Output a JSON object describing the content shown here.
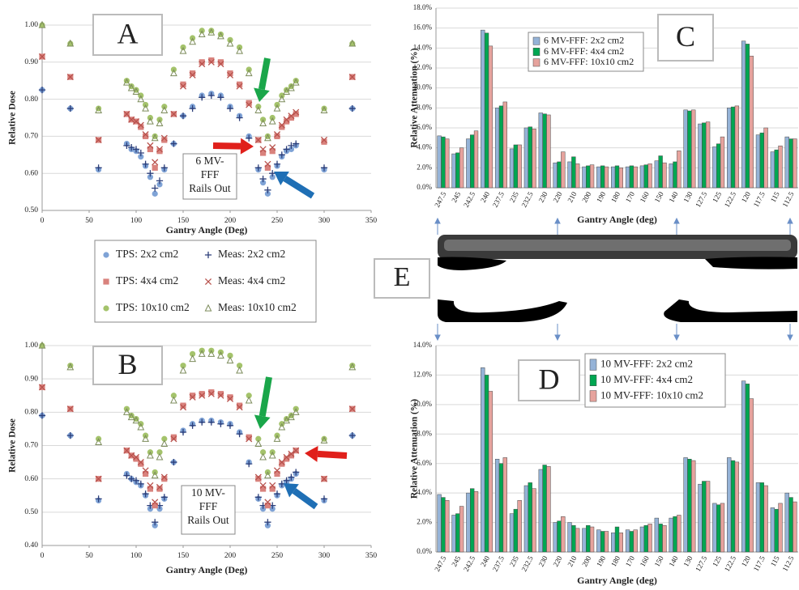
{
  "chart_data": [
    {
      "type": "scatter",
      "panel_label": "A",
      "annotation": [
        "6 MV-",
        "FFF",
        "Rails Out"
      ],
      "y_label": "Relative Dose",
      "x_label": "Gantry Angle  (Deg)",
      "xlim": [
        0,
        350
      ],
      "xticks": [
        0,
        50,
        100,
        150,
        200,
        250,
        300,
        350
      ],
      "ylim": [
        0.5,
        1.0
      ],
      "yticks": [
        {
          "value": 0.5,
          "label": "0.50"
        },
        {
          "value": 0.6,
          "label": "0.60"
        },
        {
          "value": 0.7,
          "label": "0.70"
        },
        {
          "value": 0.8,
          "label": "0.80"
        },
        {
          "value": 0.9,
          "label": "0.90"
        },
        {
          "value": 1.0,
          "label": "1.00"
        }
      ],
      "grid": true,
      "legend": true,
      "x": [
        0,
        30,
        60,
        90,
        95,
        100,
        105,
        110,
        115,
        120,
        125,
        130,
        140,
        150,
        160,
        170,
        180,
        190,
        200,
        210,
        220,
        230,
        235,
        240,
        245,
        250,
        255,
        260,
        265,
        270,
        300,
        330
      ],
      "series": [
        {
          "name": "TPS: 2x2 cm2",
          "marker": "circle",
          "color": "#7fa3d6",
          "values": [
            0.825,
            0.775,
            0.61,
            0.68,
            0.665,
            0.66,
            0.645,
            0.62,
            0.59,
            0.545,
            0.57,
            0.61,
            0.68,
            0.755,
            0.78,
            0.81,
            0.815,
            0.81,
            0.78,
            0.755,
            0.7,
            0.61,
            0.575,
            0.545,
            0.59,
            0.62,
            0.645,
            0.66,
            0.665,
            0.675,
            0.61,
            0.775
          ]
        },
        {
          "name": "Meas: 2x2 cm2",
          "marker": "plus",
          "color": "#2d3f7a",
          "values": [
            0.825,
            0.775,
            0.615,
            0.675,
            0.67,
            0.665,
            0.655,
            0.625,
            0.6,
            0.56,
            0.58,
            0.615,
            0.68,
            0.755,
            0.775,
            0.805,
            0.81,
            0.805,
            0.775,
            0.75,
            0.695,
            0.615,
            0.585,
            0.555,
            0.6,
            0.625,
            0.65,
            0.665,
            0.675,
            0.68,
            0.615,
            0.775
          ]
        },
        {
          "name": "TPS: 4x4 cm2",
          "marker": "square",
          "color": "#d9827d",
          "values": [
            0.915,
            0.86,
            0.69,
            0.76,
            0.745,
            0.74,
            0.725,
            0.7,
            0.665,
            0.615,
            0.66,
            0.69,
            0.76,
            0.84,
            0.87,
            0.9,
            0.905,
            0.9,
            0.87,
            0.84,
            0.79,
            0.69,
            0.655,
            0.615,
            0.66,
            0.7,
            0.725,
            0.74,
            0.75,
            0.76,
            0.685,
            0.86
          ]
        },
        {
          "name": "Meas: 4x4 cm2",
          "marker": "x",
          "color": "#b8524d",
          "values": [
            0.915,
            0.86,
            0.69,
            0.76,
            0.745,
            0.74,
            0.73,
            0.705,
            0.675,
            0.63,
            0.665,
            0.695,
            0.76,
            0.835,
            0.865,
            0.895,
            0.9,
            0.895,
            0.865,
            0.835,
            0.785,
            0.69,
            0.665,
            0.625,
            0.67,
            0.705,
            0.73,
            0.745,
            0.755,
            0.765,
            0.69,
            0.86
          ]
        },
        {
          "name": "TPS: 10x10 cm2",
          "marker": "circle",
          "color": "#a4c36b",
          "values": [
            1.0,
            0.95,
            0.775,
            0.85,
            0.835,
            0.825,
            0.81,
            0.785,
            0.75,
            0.7,
            0.745,
            0.78,
            0.88,
            0.94,
            0.965,
            0.985,
            0.985,
            0.975,
            0.96,
            0.94,
            0.88,
            0.78,
            0.745,
            0.7,
            0.75,
            0.785,
            0.81,
            0.825,
            0.835,
            0.85,
            0.775,
            0.95
          ]
        },
        {
          "name": "Meas: 10x10 cm2",
          "marker": "triangle",
          "color": "#7d8c5c",
          "values": [
            1.0,
            0.95,
            0.77,
            0.845,
            0.83,
            0.82,
            0.8,
            0.775,
            0.74,
            0.695,
            0.735,
            0.77,
            0.87,
            0.93,
            0.955,
            0.975,
            0.98,
            0.97,
            0.95,
            0.93,
            0.87,
            0.77,
            0.735,
            0.695,
            0.74,
            0.775,
            0.8,
            0.82,
            0.83,
            0.845,
            0.77,
            0.95
          ]
        }
      ]
    },
    {
      "type": "scatter",
      "panel_label": "B",
      "annotation": [
        "10 MV-",
        "FFF",
        "Rails Out"
      ],
      "y_label": "Relative Dose",
      "x_label": "Gantry Angle  (Deg)",
      "xlim": [
        0,
        350
      ],
      "xticks": [
        0,
        50,
        100,
        150,
        200,
        250,
        300,
        350
      ],
      "ylim": [
        0.4,
        1.0
      ],
      "yticks": [
        {
          "value": 0.4,
          "label": "0.40"
        },
        {
          "value": 0.5,
          "label": "0.50"
        },
        {
          "value": 0.6,
          "label": "0.60"
        },
        {
          "value": 0.7,
          "label": "0.70"
        },
        {
          "value": 0.8,
          "label": "0.80"
        },
        {
          "value": 0.9,
          "label": "0.90"
        },
        {
          "value": 1.0,
          "label": "1.00"
        }
      ],
      "grid": true,
      "x": [
        0,
        30,
        60,
        90,
        95,
        100,
        105,
        110,
        115,
        120,
        125,
        130,
        140,
        150,
        160,
        170,
        180,
        190,
        200,
        210,
        220,
        230,
        235,
        240,
        245,
        250,
        255,
        260,
        265,
        270,
        300,
        330
      ],
      "series": [
        {
          "marker": "circle",
          "color": "#7fa3d6",
          "values": [
            0.79,
            0.73,
            0.535,
            0.615,
            0.6,
            0.59,
            0.58,
            0.55,
            0.51,
            0.46,
            0.51,
            0.54,
            0.65,
            0.745,
            0.765,
            0.775,
            0.775,
            0.77,
            0.765,
            0.74,
            0.65,
            0.54,
            0.51,
            0.46,
            0.51,
            0.55,
            0.58,
            0.59,
            0.6,
            0.615,
            0.535,
            0.73
          ]
        },
        {
          "marker": "plus",
          "color": "#2d3f7a",
          "values": [
            0.79,
            0.73,
            0.54,
            0.61,
            0.6,
            0.595,
            0.585,
            0.555,
            0.52,
            0.47,
            0.52,
            0.545,
            0.65,
            0.74,
            0.76,
            0.77,
            0.77,
            0.765,
            0.76,
            0.735,
            0.645,
            0.545,
            0.52,
            0.47,
            0.52,
            0.555,
            0.585,
            0.595,
            0.605,
            0.62,
            0.54,
            0.73
          ]
        },
        {
          "marker": "square",
          "color": "#d9827d",
          "values": [
            0.875,
            0.81,
            0.6,
            0.685,
            0.67,
            0.66,
            0.645,
            0.615,
            0.57,
            0.52,
            0.57,
            0.6,
            0.725,
            0.82,
            0.85,
            0.855,
            0.86,
            0.855,
            0.845,
            0.82,
            0.725,
            0.6,
            0.57,
            0.52,
            0.57,
            0.615,
            0.645,
            0.66,
            0.67,
            0.685,
            0.6,
            0.81
          ]
        },
        {
          "marker": "x",
          "color": "#b8524d",
          "values": [
            0.875,
            0.81,
            0.6,
            0.685,
            0.67,
            0.665,
            0.65,
            0.625,
            0.58,
            0.53,
            0.575,
            0.605,
            0.72,
            0.815,
            0.845,
            0.85,
            0.855,
            0.85,
            0.84,
            0.815,
            0.72,
            0.605,
            0.58,
            0.53,
            0.58,
            0.625,
            0.65,
            0.665,
            0.675,
            0.685,
            0.6,
            0.81
          ]
        },
        {
          "marker": "circle",
          "color": "#a4c36b",
          "values": [
            1.0,
            0.94,
            0.72,
            0.81,
            0.79,
            0.78,
            0.765,
            0.73,
            0.68,
            0.62,
            0.68,
            0.72,
            0.85,
            0.94,
            0.975,
            0.985,
            0.985,
            0.98,
            0.97,
            0.94,
            0.85,
            0.72,
            0.68,
            0.62,
            0.68,
            0.73,
            0.765,
            0.78,
            0.79,
            0.81,
            0.72,
            0.94
          ]
        },
        {
          "marker": "triangle",
          "color": "#7d8c5c",
          "values": [
            1.0,
            0.935,
            0.71,
            0.8,
            0.785,
            0.775,
            0.755,
            0.72,
            0.67,
            0.61,
            0.665,
            0.705,
            0.835,
            0.925,
            0.96,
            0.975,
            0.975,
            0.97,
            0.955,
            0.925,
            0.835,
            0.705,
            0.665,
            0.61,
            0.67,
            0.72,
            0.755,
            0.775,
            0.785,
            0.8,
            0.715,
            0.935
          ]
        }
      ]
    },
    {
      "type": "bar",
      "panel_label": "C",
      "y_label": "Relative Attenuation (%)",
      "x_label": "Gantry Angle  (deg)",
      "categories": [
        "247.5",
        "245",
        "242.5",
        "240",
        "237.5",
        "235",
        "232.5",
        "230",
        "220",
        "210",
        "200",
        "190",
        "180",
        "170",
        "160",
        "150",
        "140",
        "130",
        "127.5",
        "125",
        "122.5",
        "120",
        "117.5",
        "115",
        "112.5"
      ],
      "ylim": [
        0,
        18
      ],
      "yticks": [
        {
          "value": 0,
          "label": "0.0%"
        },
        {
          "value": 2,
          "label": "2.0%"
        },
        {
          "value": 4,
          "label": "4.0%"
        },
        {
          "value": 6,
          "label": "6.0%"
        },
        {
          "value": 8,
          "label": "8.0%"
        },
        {
          "value": 10,
          "label": "10.0%"
        },
        {
          "value": 12,
          "label": "12.0%"
        },
        {
          "value": 14,
          "label": "14.0%"
        },
        {
          "value": 16,
          "label": "16.0%"
        },
        {
          "value": 18,
          "label": "18.0%"
        }
      ],
      "grid": true,
      "legend": true,
      "series": [
        {
          "name": "6 MV-FFF: 2x2 cm2",
          "color": "#95b3d7",
          "values": [
            5.2,
            3.4,
            4.9,
            15.8,
            8.0,
            3.9,
            6.0,
            7.5,
            2.5,
            2.6,
            2.1,
            2.1,
            2.1,
            2.1,
            2.2,
            2.7,
            2.4,
            7.8,
            6.4,
            4.1,
            8.0,
            14.7,
            5.3,
            3.6,
            5.1
          ]
        },
        {
          "name": "6 MV-FFF: 4x4 cm2",
          "color": "#00a651",
          "values": [
            5.1,
            3.5,
            5.3,
            15.5,
            8.2,
            4.3,
            6.1,
            7.4,
            2.6,
            3.1,
            2.2,
            2.2,
            2.2,
            2.2,
            2.3,
            3.2,
            2.6,
            7.7,
            6.5,
            4.4,
            8.1,
            14.4,
            5.5,
            3.8,
            4.9
          ]
        },
        {
          "name": "6 MV-FFF: 10x10 cm2",
          "color": "#e6a39d",
          "values": [
            4.9,
            4.0,
            5.7,
            14.2,
            8.6,
            4.3,
            5.9,
            7.3,
            3.6,
            2.4,
            2.3,
            2.1,
            2.0,
            2.1,
            2.4,
            2.5,
            3.7,
            7.8,
            6.6,
            5.1,
            8.2,
            13.2,
            6.0,
            4.2,
            4.9
          ]
        }
      ]
    },
    {
      "type": "bar",
      "panel_label": "D",
      "y_label": "Relative Attenuation (%)",
      "x_label": "Gantry Angle  (deg)",
      "categories": [
        "247.5",
        "245",
        "242.5",
        "240",
        "237.5",
        "235",
        "232.5",
        "230",
        "220",
        "210",
        "200",
        "190",
        "180",
        "170",
        "160",
        "150",
        "140",
        "130",
        "127.5",
        "125",
        "122.5",
        "120",
        "117.5",
        "115",
        "112.5"
      ],
      "ylim": [
        0,
        14
      ],
      "yticks": [
        {
          "value": 0,
          "label": "0.0%"
        },
        {
          "value": 2,
          "label": "2.0%"
        },
        {
          "value": 4,
          "label": "4.0%"
        },
        {
          "value": 6,
          "label": "6.0%"
        },
        {
          "value": 8,
          "label": "8.0%"
        },
        {
          "value": 10,
          "label": "10.0%"
        },
        {
          "value": 12,
          "label": "12.0%"
        },
        {
          "value": 14,
          "label": "14.0%"
        }
      ],
      "grid": true,
      "legend": true,
      "series": [
        {
          "name": "10 MV-FFF: 2x2 cm2",
          "color": "#95b3d7",
          "values": [
            3.9,
            2.5,
            4.0,
            12.5,
            6.3,
            2.6,
            4.5,
            5.6,
            2.0,
            2.0,
            1.6,
            1.5,
            1.3,
            1.5,
            1.7,
            2.3,
            2.3,
            6.4,
            4.6,
            3.3,
            6.4,
            11.6,
            4.7,
            3.0,
            4.0
          ]
        },
        {
          "name": "10 MV-FFF: 4x4 cm2",
          "color": "#00a651",
          "values": [
            3.7,
            2.6,
            4.3,
            12.0,
            6.0,
            2.9,
            4.7,
            5.9,
            2.1,
            1.8,
            1.8,
            1.4,
            1.7,
            1.4,
            1.8,
            1.9,
            2.4,
            6.3,
            4.8,
            3.2,
            6.2,
            11.4,
            4.7,
            2.9,
            3.7
          ]
        },
        {
          "name": "10 MV-FFF: 10x10 cm2",
          "color": "#e6a39d",
          "values": [
            3.5,
            3.1,
            4.1,
            10.9,
            6.4,
            3.5,
            4.3,
            5.8,
            2.4,
            1.6,
            1.7,
            1.4,
            1.3,
            1.5,
            1.9,
            1.8,
            2.5,
            6.2,
            4.8,
            3.3,
            6.1,
            10.4,
            4.5,
            3.3,
            3.4
          ]
        }
      ]
    }
  ],
  "panel_e": {
    "label": "E"
  }
}
